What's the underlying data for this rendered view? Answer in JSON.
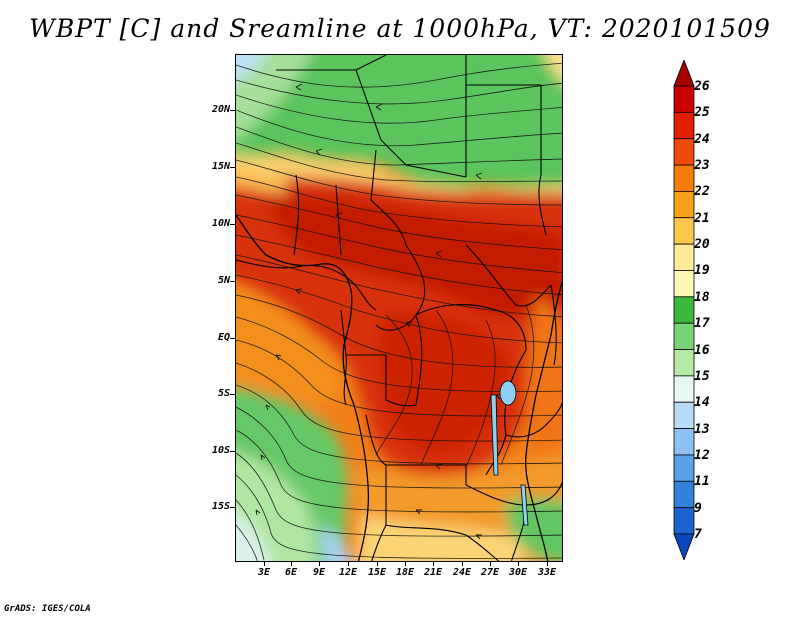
{
  "title": "WBPT [C] and Sreamline at 1000hPa, VT: 2020101509",
  "footer": "GrADS: IGES/COLA",
  "lat_labels": [
    "20N",
    "15N",
    "10N",
    "5N",
    "EQ",
    "5S",
    "10S",
    "15S"
  ],
  "lon_labels": [
    "3E",
    "6E",
    "9E",
    "12E",
    "15E",
    "18E",
    "21E",
    "24E",
    "27E",
    "30E",
    "33E"
  ],
  "colorbar": {
    "labels": [
      "26",
      "25",
      "24",
      "23",
      "22",
      "21",
      "20",
      "19",
      "18",
      "17",
      "16",
      "15",
      "14",
      "13",
      "12",
      "11",
      "9",
      "7"
    ],
    "colors": [
      "#a50000",
      "#c80000",
      "#e01e00",
      "#f04b0a",
      "#f57b0a",
      "#f7a11a",
      "#fbc84e",
      "#ffe99a",
      "#fff7b8",
      "#3cb93c",
      "#78d278",
      "#b4e9a6",
      "#e4f7f0",
      "#b6dcf8",
      "#8cc1f2",
      "#5aa0e8",
      "#3282dc",
      "#1c64d2",
      "#0a46be"
    ]
  },
  "colors": {
    "hot": "#d42a06",
    "very_hot": "#c41800",
    "warm": "#f06a10",
    "orange": "#f79a24",
    "yellow": "#fbe08c",
    "green": "#62c662",
    "light_green": "#a8e29a",
    "pale": "#e0f5ec",
    "blue": "#9ccdf3"
  }
}
